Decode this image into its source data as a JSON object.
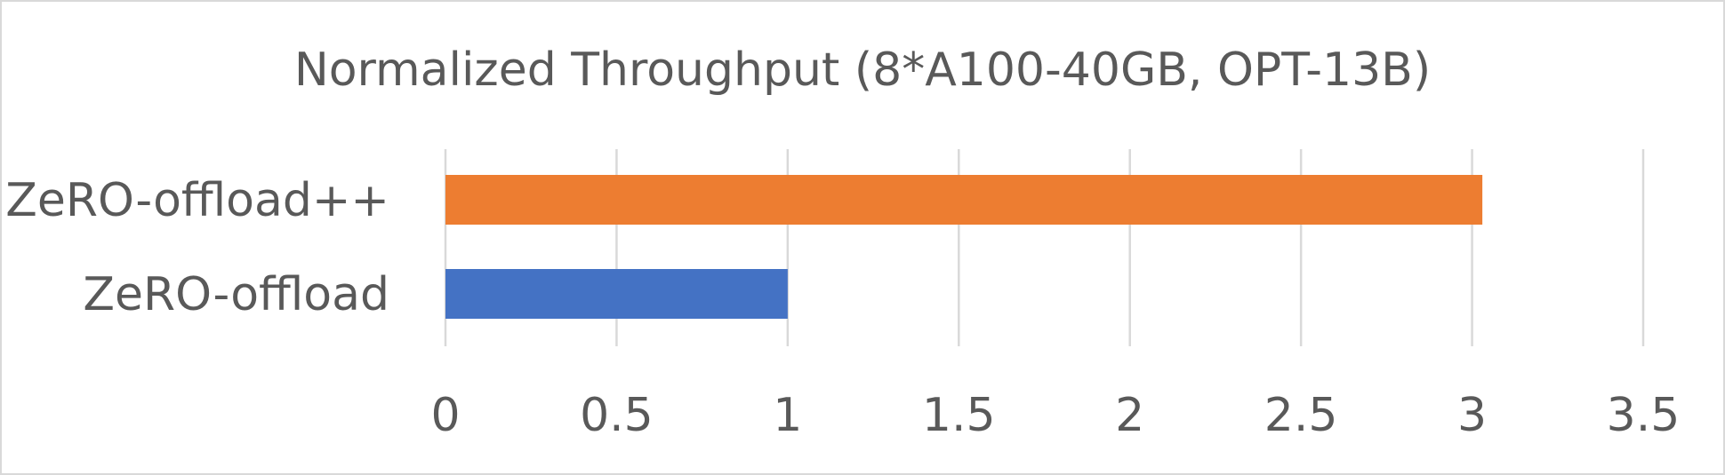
{
  "chart_data": {
    "type": "bar",
    "orientation": "horizontal",
    "title": "Normalized Throughput (8*A100-40GB, OPT-13B)",
    "categories": [
      "ZeRO-offload++",
      "ZeRO-offload"
    ],
    "values": [
      3.03,
      1.0
    ],
    "colors": [
      "#ed7d31",
      "#4472c4"
    ],
    "xlim": [
      0,
      3.5
    ],
    "xticks": [
      "0",
      "0.5",
      "1",
      "1.5",
      "2",
      "2.5",
      "3",
      "3.5"
    ],
    "xtick_values": [
      0,
      0.5,
      1,
      1.5,
      2,
      2.5,
      3,
      3.5
    ],
    "grid": "vertical",
    "legend": "none",
    "xlabel": "",
    "ylabel": ""
  }
}
